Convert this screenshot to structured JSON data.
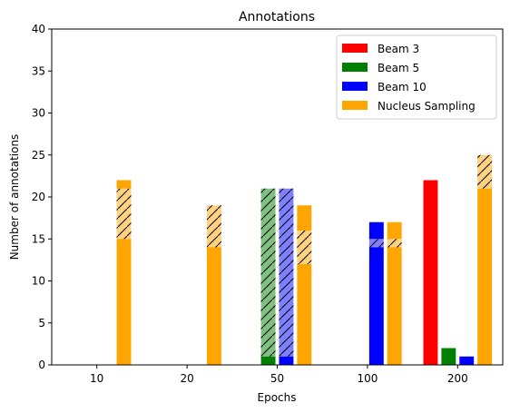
{
  "chart_data": {
    "type": "bar",
    "title": "Annotations",
    "xlabel": "Epochs",
    "ylabel": "Number of annotations",
    "ylim": [
      0,
      40
    ],
    "yticks": [
      0,
      5,
      10,
      15,
      20,
      25,
      30,
      35,
      40
    ],
    "categories": [
      "10",
      "20",
      "50",
      "100",
      "200"
    ],
    "legend_position": "top-right",
    "grid": false,
    "series": [
      {
        "name": "Beam 3",
        "color": "#ff0000",
        "values": [
          0,
          0,
          0,
          0,
          22
        ],
        "hatched_values": [
          0,
          0,
          0,
          0,
          0
        ],
        "extra_values": [
          0,
          0,
          0,
          0,
          0
        ]
      },
      {
        "name": "Beam 5",
        "color": "#008000",
        "values": [
          0,
          0,
          1,
          0,
          2
        ],
        "hatched_values": [
          0,
          0,
          20,
          0,
          0
        ],
        "extra_values": [
          0,
          0,
          0,
          0,
          0
        ]
      },
      {
        "name": "Beam 10",
        "color": "#0000ff",
        "values": [
          0,
          0,
          1,
          14,
          1
        ],
        "hatched_values": [
          0,
          0,
          20,
          1,
          0
        ],
        "extra_values": [
          0,
          0,
          0,
          2,
          0
        ]
      },
      {
        "name": "Nucleus Sampling",
        "color": "#ffa500",
        "values": [
          15,
          14,
          12,
          14,
          21
        ],
        "hatched_values": [
          6,
          5,
          4,
          1,
          4
        ],
        "extra_values": [
          1,
          0,
          3,
          2,
          0
        ]
      }
    ]
  }
}
